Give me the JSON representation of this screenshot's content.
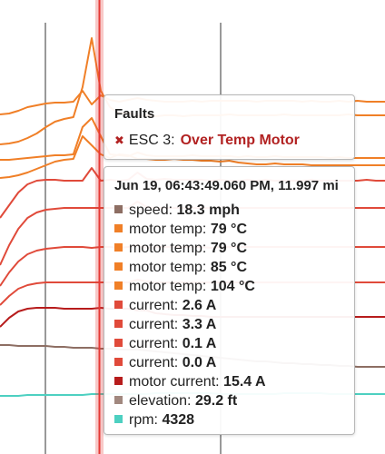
{
  "faults": {
    "title": "Faults",
    "icon": "close-icon",
    "source": "ESC 3:",
    "message": "Over Temp Motor",
    "color": "#b22222"
  },
  "tooltip": {
    "title": "Jun 19, 06:43:49.060 PM, 11.997 mi",
    "items": [
      {
        "label": "speed:",
        "value": "18.3 mph",
        "color": "#8d6e63"
      },
      {
        "label": "motor temp:",
        "value": "79 °C",
        "color": "#f07f27"
      },
      {
        "label": "motor temp:",
        "value": "79 °C",
        "color": "#f07f27"
      },
      {
        "label": "motor temp:",
        "value": "85 °C",
        "color": "#f07f27"
      },
      {
        "label": "motor temp:",
        "value": "104 °C",
        "color": "#f07f27"
      },
      {
        "label": "current:",
        "value": "2.6 A",
        "color": "#e04a3a"
      },
      {
        "label": "current:",
        "value": "3.3 A",
        "color": "#e04a3a"
      },
      {
        "label": "current:",
        "value": "0.1 A",
        "color": "#e04a3a"
      },
      {
        "label": "current:",
        "value": "0.0 A",
        "color": "#e04a3a"
      },
      {
        "label": "motor current:",
        "value": "15.4 A",
        "color": "#b71c1c"
      },
      {
        "label": "elevation:",
        "value": "29.2 ft",
        "color": "#a1887f"
      },
      {
        "label": "rpm:",
        "value": "4328",
        "color": "#4dd0c1"
      }
    ]
  },
  "chart_data": {
    "type": "line",
    "title": "",
    "xlabel": "",
    "ylabel": "",
    "cursor_color": "#e53935",
    "x": [
      0,
      1,
      2,
      3,
      4,
      5,
      6,
      7,
      8,
      9,
      10,
      11,
      12,
      13,
      14,
      15,
      16,
      17,
      18,
      19,
      20,
      21,
      22,
      23,
      24,
      25,
      26,
      27,
      28,
      29,
      30,
      31,
      32,
      33,
      34,
      35,
      36,
      37,
      38,
      39,
      40,
      41,
      42
    ],
    "series": [
      {
        "color": "#f07f27",
        "values": [
          126,
          125,
          122,
          118,
          116,
          114,
          113,
          113,
          112,
          111,
          112,
          110,
          110,
          112,
          110,
          108,
          110,
          111,
          112,
          112,
          112,
          111,
          112,
          111,
          111,
          111,
          111,
          111,
          112,
          111,
          111,
          111,
          111,
          112,
          111,
          112,
          112,
          111,
          112,
          111,
          112,
          112,
          112
        ]
      },
      {
        "color": "#f07f27",
        "values": [
          159,
          158,
          156,
          152,
          147,
          140,
          134,
          131,
          129,
          128,
          127,
          126,
          127,
          125,
          124,
          128,
          127,
          128,
          127,
          127,
          128,
          127,
          127,
          127,
          127,
          126,
          127,
          127,
          127,
          127,
          127,
          126,
          127,
          127,
          127,
          127,
          127,
          127,
          126,
          127,
          127,
          127,
          127
        ]
      },
      {
        "color": "#f07f27",
        "values": [
          176,
          176,
          175,
          174,
          173,
          172,
          171,
          171,
          170,
          170,
          171,
          169,
          170,
          171,
          172,
          168,
          171,
          172,
          172,
          172,
          172,
          171,
          172,
          172,
          172,
          172,
          173,
          172,
          173,
          173,
          172,
          173,
          173,
          173,
          173,
          173,
          174,
          173,
          174,
          174,
          174,
          174,
          174
        ]
      },
      {
        "color": "#f07f27",
        "values": [
          196,
          195,
          193,
          190,
          186,
          182,
          178,
          176,
          175,
          174,
          173,
          172,
          174,
          170,
          171,
          175,
          175,
          176,
          176,
          175,
          176,
          176,
          177,
          177,
          178,
          177,
          179,
          180,
          181,
          181,
          180,
          181,
          181,
          181,
          182,
          182,
          182,
          182,
          182,
          182,
          182,
          182,
          182
        ]
      },
      {
        "color": "#e04a3a",
        "values": [
          240,
          226,
          212,
          203,
          199,
          198,
          198,
          199,
          199,
          199,
          198,
          199,
          198,
          199,
          198,
          190,
          197,
          198,
          197,
          198,
          198,
          198,
          198,
          199,
          198,
          199,
          199,
          198,
          199,
          198,
          199,
          199,
          199,
          199,
          198,
          199,
          199,
          199,
          199,
          199,
          198,
          199,
          199
        ]
      },
      {
        "color": "#e04a3a",
        "values": [
          292,
          270,
          252,
          240,
          234,
          231,
          230,
          229,
          229,
          229,
          229,
          229,
          229,
          229,
          229,
          222,
          228,
          229,
          229,
          229,
          229,
          229,
          229,
          229,
          228,
          229,
          229,
          229,
          229,
          229,
          229,
          229,
          229,
          229,
          229,
          229,
          229,
          229,
          229,
          229,
          229,
          229,
          229
        ]
      },
      {
        "color": "#e04a3a",
        "values": [
          315,
          300,
          288,
          280,
          276,
          274,
          273,
          272,
          272,
          272,
          273,
          272,
          272,
          273,
          272,
          270,
          273,
          272,
          272,
          272,
          272,
          272,
          272,
          273,
          272,
          272,
          272,
          272,
          272,
          272,
          272,
          272,
          272,
          272,
          272,
          272,
          272,
          272,
          272,
          272,
          272,
          272,
          272
        ]
      },
      {
        "color": "#e04a3a",
        "values": [
          336,
          326,
          318,
          314,
          312,
          311,
          311,
          311,
          311,
          311,
          311,
          311,
          311,
          311,
          311,
          308,
          310,
          311,
          311,
          311,
          311,
          311,
          311,
          311,
          311,
          311,
          311,
          311,
          311,
          311,
          311,
          311,
          311,
          311,
          311,
          311,
          311,
          311,
          311,
          311,
          311,
          311,
          311
        ]
      },
      {
        "color": "#b71c1c",
        "values": [
          360,
          350,
          343,
          340,
          339,
          339,
          339,
          340,
          340,
          340,
          340,
          339,
          340,
          340,
          340,
          342,
          342,
          345,
          346,
          347,
          347,
          348,
          348,
          349,
          349,
          349,
          349,
          349,
          349,
          349,
          349,
          349,
          349,
          349,
          349,
          349,
          349,
          349,
          349,
          349,
          349,
          349,
          349
        ]
      },
      {
        "color": "#8d6e63",
        "values": [
          380,
          380,
          381,
          381,
          381,
          381,
          382,
          382,
          383,
          383,
          383,
          384,
          384,
          385,
          385,
          385,
          386,
          387,
          388,
          389,
          390,
          391,
          392,
          393,
          394,
          395,
          396,
          397,
          398,
          398,
          399,
          400,
          400,
          401,
          401,
          402,
          402,
          403,
          403,
          404,
          404,
          404,
          404
        ]
      },
      {
        "color": "#4dd0c1",
        "values": [
          436,
          436,
          436,
          435,
          435,
          435,
          435,
          435,
          435,
          435,
          434,
          434,
          434,
          434,
          434,
          434,
          434,
          433,
          433,
          433,
          433,
          433,
          433,
          433,
          434,
          434,
          434,
          434,
          434,
          434,
          434,
          433,
          433,
          433,
          433,
          433,
          434,
          434,
          434,
          434,
          434,
          434,
          434
        ]
      }
    ]
  }
}
